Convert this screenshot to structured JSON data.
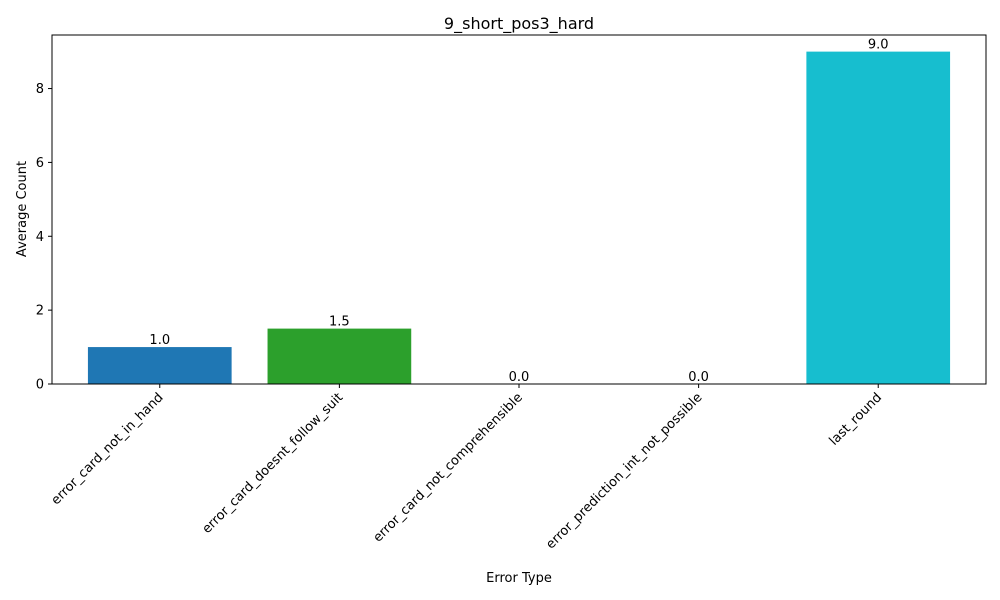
{
  "chart_data": {
    "type": "bar",
    "title": "9_short_pos3_hard",
    "xlabel": "Error Type",
    "ylabel": "Average Count",
    "categories": [
      "error_card_not_in_hand",
      "error_card_doesnt_follow_suit",
      "error_card_not_comprehensible",
      "error_prediction_int_not_possible",
      "last_round"
    ],
    "values": [
      1.0,
      1.5,
      0.0,
      0.0,
      9.0
    ],
    "value_labels": [
      "1.0",
      "1.5",
      "0.0",
      "0.0",
      "9.0"
    ],
    "colors": [
      "#1f77b4",
      "#2ca02c",
      "#7f7f7f",
      "#bcbd22",
      "#17becf"
    ],
    "ylim": [
      0,
      9.45
    ],
    "yticks": [
      0,
      2,
      4,
      6,
      8
    ],
    "ytick_labels": [
      "0",
      "2",
      "4",
      "6",
      "8"
    ],
    "grid": false,
    "legend": false
  }
}
